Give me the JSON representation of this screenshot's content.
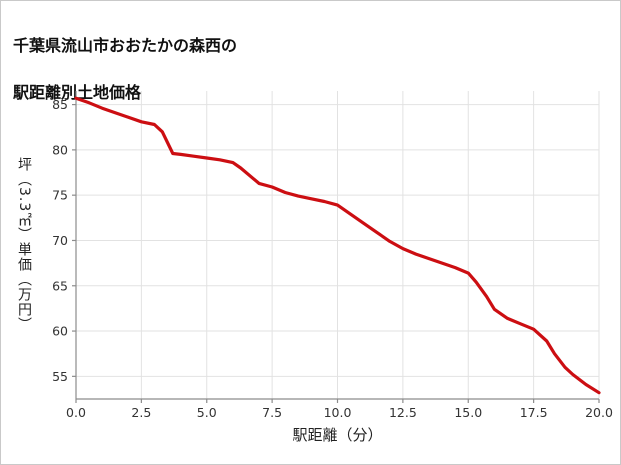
{
  "page": {
    "background": "#ffffff",
    "border_color": "#c9c9c9"
  },
  "chart_data": {
    "type": "line",
    "title": "千葉県流山市おおたかの森西の駅距離別土地価格",
    "title_lines": [
      "千葉県流山市おおたかの森西の",
      "駅距離別土地価格"
    ],
    "xlabel": "駅距離（分）",
    "ylabel": "坪（3.3㎡）単価（万円）",
    "xlim": [
      0,
      20
    ],
    "ylim": [
      52.5,
      86.5
    ],
    "x_ticks": [
      0,
      2.5,
      5,
      7.5,
      10,
      12.5,
      15,
      17.5,
      20
    ],
    "x_tick_labels": [
      "0.0",
      "2.5",
      "5.0",
      "7.5",
      "10.0",
      "12.5",
      "15.0",
      "17.5",
      "20.0"
    ],
    "y_ticks": [
      55,
      60,
      65,
      70,
      75,
      80,
      85
    ],
    "y_tick_labels": [
      "55",
      "60",
      "65",
      "70",
      "75",
      "80",
      "85"
    ],
    "grid": true,
    "legend": false,
    "line_color": "#cc0e12",
    "grid_color": "#e2e2e2",
    "axis_color": "#8c8c8c",
    "tick_text_color": "#333333",
    "series": [
      {
        "points": [
          [
            0,
            85.7
          ],
          [
            0.5,
            85.2
          ],
          [
            1,
            84.6
          ],
          [
            1.5,
            84.1
          ],
          [
            2,
            83.6
          ],
          [
            2.5,
            83.1
          ],
          [
            3,
            82.8
          ],
          [
            3.3,
            82.0
          ],
          [
            3.7,
            79.6
          ],
          [
            4,
            79.5
          ],
          [
            4.5,
            79.3
          ],
          [
            5,
            79.1
          ],
          [
            5.5,
            78.9
          ],
          [
            6,
            78.6
          ],
          [
            6.3,
            78.0
          ],
          [
            7,
            76.3
          ],
          [
            7.5,
            75.9
          ],
          [
            8,
            75.3
          ],
          [
            8.5,
            74.9
          ],
          [
            9,
            74.6
          ],
          [
            9.5,
            74.3
          ],
          [
            10,
            73.9
          ],
          [
            10.5,
            72.9
          ],
          [
            11,
            71.9
          ],
          [
            11.5,
            70.9
          ],
          [
            12,
            69.9
          ],
          [
            12.5,
            69.1
          ],
          [
            13,
            68.5
          ],
          [
            13.5,
            68.0
          ],
          [
            14,
            67.5
          ],
          [
            14.5,
            67.0
          ],
          [
            15,
            66.4
          ],
          [
            15.3,
            65.4
          ],
          [
            15.7,
            63.8
          ],
          [
            16,
            62.4
          ],
          [
            16.5,
            61.4
          ],
          [
            17,
            60.8
          ],
          [
            17.5,
            60.2
          ],
          [
            18,
            58.9
          ],
          [
            18.3,
            57.5
          ],
          [
            18.7,
            56.0
          ],
          [
            19,
            55.2
          ],
          [
            19.5,
            54.1
          ],
          [
            20,
            53.2
          ]
        ]
      }
    ]
  }
}
